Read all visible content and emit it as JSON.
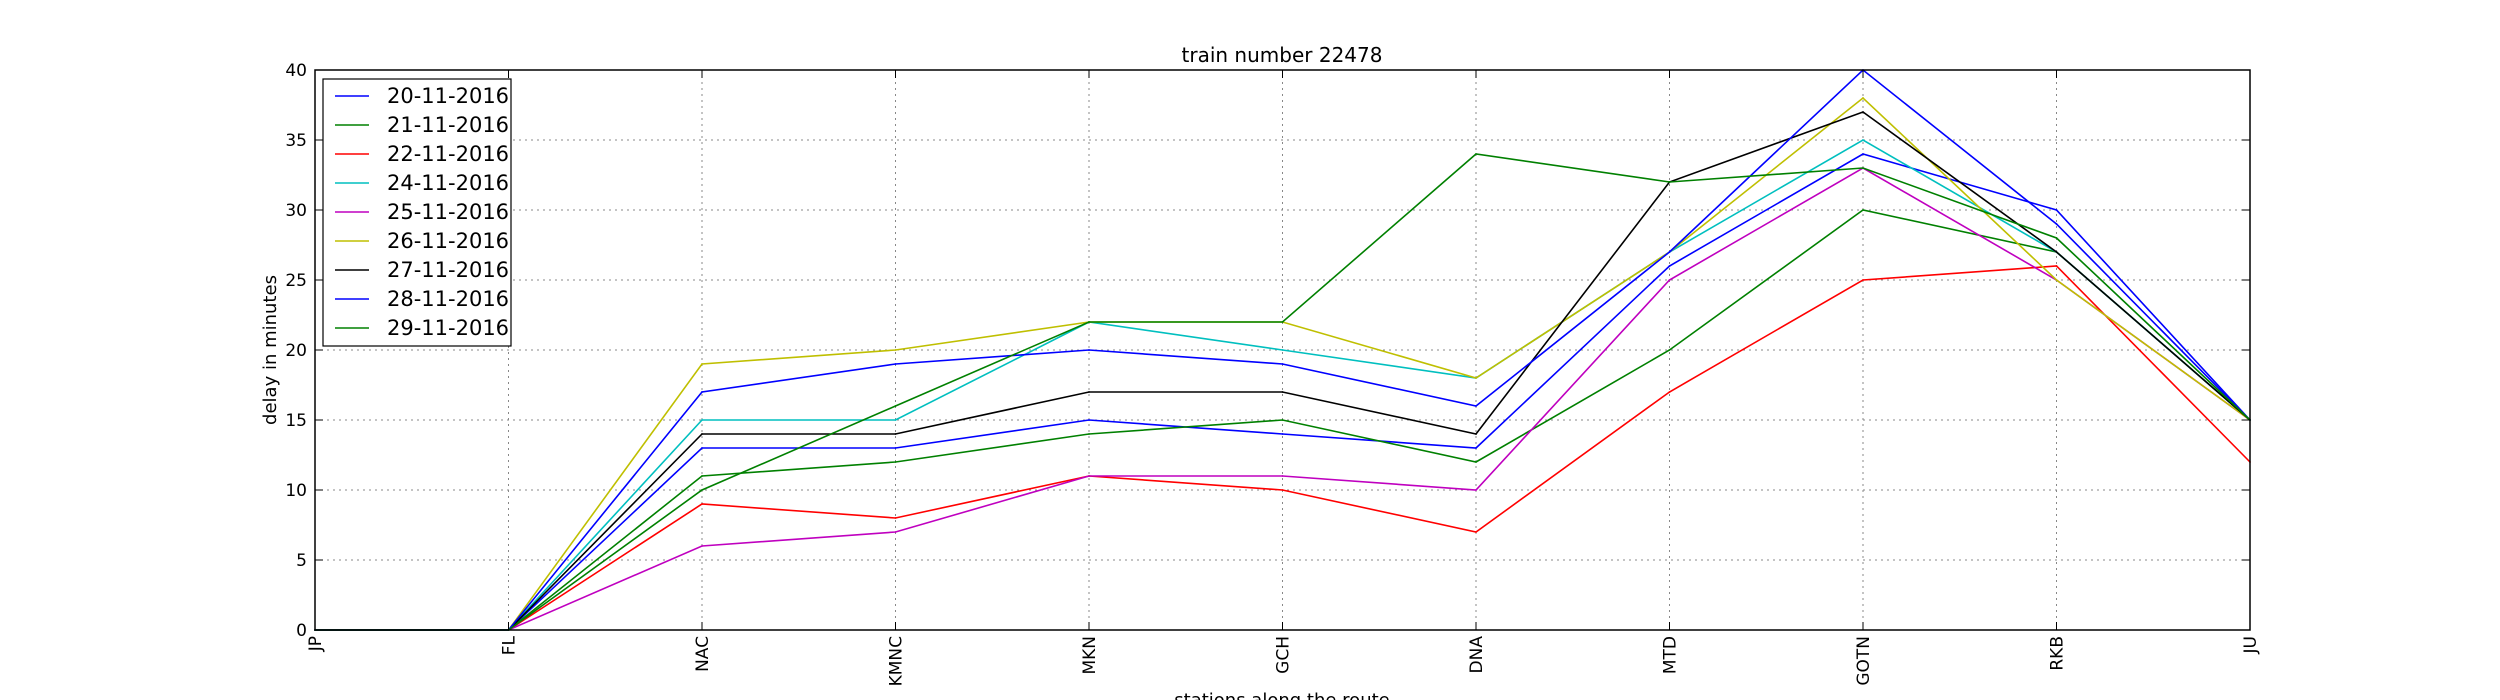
{
  "chart_data": {
    "type": "line",
    "title": "train number 22478",
    "xlabel": "stations along the route",
    "ylabel": "delay in minutes",
    "categories": [
      "JP",
      "FL",
      "NAC",
      "KMNC",
      "MKN",
      "GCH",
      "DNA",
      "MTD",
      "GOTN",
      "RKB",
      "JU"
    ],
    "ylim": [
      0,
      40
    ],
    "yticks": [
      0,
      5,
      10,
      15,
      20,
      25,
      30,
      35,
      40
    ],
    "grid": true,
    "legend_position": "top-left",
    "series": [
      {
        "name": "20-11-2016",
        "color": "#0000ff",
        "values": [
          0,
          0,
          13,
          13,
          15,
          14,
          13,
          26,
          34,
          30,
          15
        ]
      },
      {
        "name": "21-11-2016",
        "color": "#008000",
        "values": [
          0,
          0,
          11,
          12,
          14,
          15,
          12,
          20,
          30,
          27,
          15
        ]
      },
      {
        "name": "22-11-2016",
        "color": "#ff0000",
        "values": [
          0,
          0,
          9,
          8,
          11,
          10,
          7,
          17,
          25,
          26,
          12
        ]
      },
      {
        "name": "24-11-2016",
        "color": "#00bfbf",
        "values": [
          0,
          0,
          15,
          15,
          22,
          20,
          18,
          27,
          35,
          27,
          15
        ]
      },
      {
        "name": "25-11-2016",
        "color": "#bf00bf",
        "values": [
          0,
          0,
          6,
          7,
          11,
          11,
          10,
          25,
          33,
          25,
          15
        ]
      },
      {
        "name": "26-11-2016",
        "color": "#bfbf00",
        "values": [
          0,
          0,
          19,
          20,
          22,
          22,
          18,
          27,
          38,
          25,
          15
        ]
      },
      {
        "name": "27-11-2016",
        "color": "#000000",
        "values": [
          0,
          0,
          14,
          14,
          17,
          17,
          14,
          32,
          37,
          27,
          15
        ]
      },
      {
        "name": "28-11-2016",
        "color": "#0000ff",
        "values": [
          0,
          0,
          17,
          19,
          20,
          19,
          16,
          27,
          40,
          29,
          15
        ]
      },
      {
        "name": "29-11-2016",
        "color": "#008000",
        "values": [
          0,
          0,
          10,
          16,
          22,
          22,
          34,
          32,
          33,
          28,
          15
        ]
      }
    ]
  }
}
